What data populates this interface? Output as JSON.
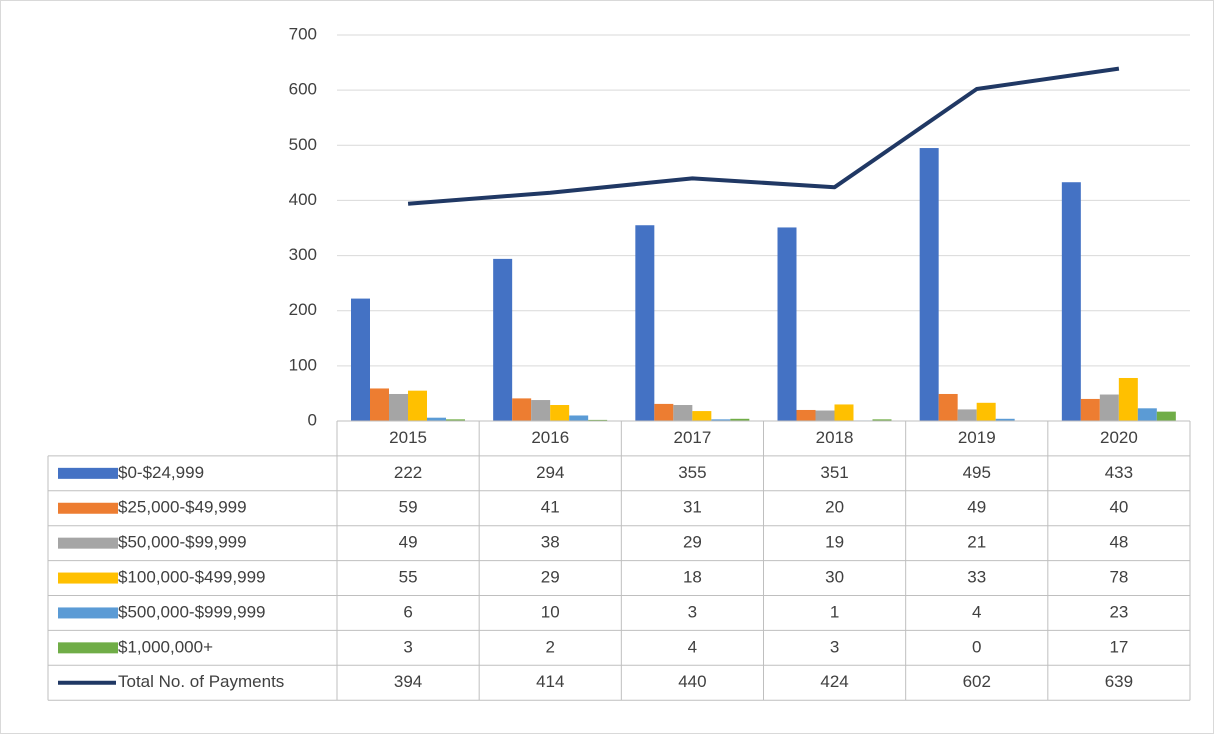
{
  "chart_data": {
    "type": "bar",
    "categories": [
      "2015",
      "2016",
      "2017",
      "2018",
      "2019",
      "2020"
    ],
    "series": [
      {
        "name": "$0-$24,999",
        "color": "#4472c4",
        "values": [
          222,
          294,
          355,
          351,
          495,
          433
        ]
      },
      {
        "name": "$25,000-$49,999",
        "color": "#ed7d31",
        "values": [
          59,
          41,
          31,
          20,
          49,
          40
        ]
      },
      {
        "name": "$50,000-$99,999",
        "color": "#a5a5a5",
        "values": [
          49,
          38,
          29,
          19,
          21,
          48
        ]
      },
      {
        "name": "$100,000-$499,999",
        "color": "#ffc000",
        "values": [
          55,
          29,
          18,
          30,
          33,
          78
        ]
      },
      {
        "name": "$500,000-$999,999",
        "color": "#5b9bd5",
        "values": [
          6,
          10,
          3,
          1,
          4,
          23
        ]
      },
      {
        "name": "$1,000,000+",
        "color": "#70ad47",
        "values": [
          3,
          2,
          4,
          3,
          0,
          17
        ]
      },
      {
        "name": "Total No. of Payments",
        "color": "#203864",
        "type": "line",
        "values": [
          394,
          414,
          440,
          424,
          602,
          639
        ]
      }
    ],
    "ylim": [
      0,
      700
    ],
    "yticks": [
      0,
      100,
      200,
      300,
      400,
      500,
      600,
      700
    ],
    "grid": true,
    "data_table": true
  }
}
